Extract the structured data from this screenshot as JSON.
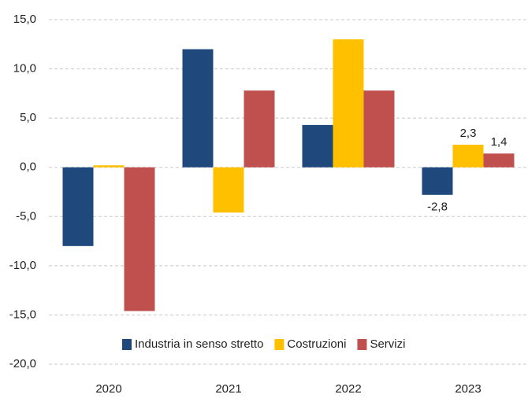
{
  "chart_data": {
    "type": "bar",
    "categories": [
      "2020",
      "2021",
      "2022",
      "2023"
    ],
    "series": [
      {
        "name": "Industria in senso stretto",
        "color": "#1f497d",
        "values": [
          -8.0,
          12.0,
          4.3,
          -2.8
        ],
        "value_labels": [
          null,
          null,
          null,
          "-2,8"
        ]
      },
      {
        "name": "Costruzioni",
        "color": "#ffc000",
        "values": [
          0.2,
          -4.6,
          13.0,
          2.3
        ],
        "value_labels": [
          null,
          null,
          null,
          "2,3"
        ]
      },
      {
        "name": "Servizi",
        "color": "#c0504d",
        "values": [
          -14.6,
          7.8,
          7.8,
          1.4
        ],
        "value_labels": [
          null,
          null,
          null,
          "1,4"
        ]
      }
    ],
    "ylim": [
      -20,
      15
    ],
    "yticks": [
      {
        "value": -20,
        "label": "-20,0"
      },
      {
        "value": -15,
        "label": "-15,0"
      },
      {
        "value": -10,
        "label": "-10,0"
      },
      {
        "value": -5,
        "label": "-5,0"
      },
      {
        "value": 0,
        "label": "0,0"
      },
      {
        "value": 5,
        "label": "5,0"
      },
      {
        "value": 10,
        "label": "10,0"
      },
      {
        "value": 15,
        "label": "15,0"
      }
    ],
    "grid": true,
    "legend": "bottom"
  }
}
